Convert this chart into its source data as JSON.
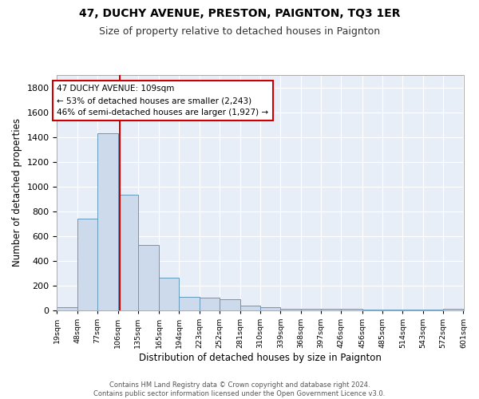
{
  "title": "47, DUCHY AVENUE, PRESTON, PAIGNTON, TQ3 1ER",
  "subtitle": "Size of property relative to detached houses in Paignton",
  "xlabel": "Distribution of detached houses by size in Paignton",
  "ylabel": "Number of detached properties",
  "bar_color": "#ccdaeb",
  "bar_edge_color": "#6699bb",
  "bg_color": "#e8eef8",
  "grid_color": "#ffffff",
  "annotation_line_color": "#cc0000",
  "annotation_box_color": "#cc0000",
  "annotation_text": "47 DUCHY AVENUE: 109sqm\n← 53% of detached houses are smaller (2,243)\n46% of semi-detached houses are larger (1,927) →",
  "property_sqm": 109,
  "bin_edges": [
    19,
    48,
    77,
    106,
    135,
    165,
    194,
    223,
    252,
    281,
    310,
    339,
    368,
    397,
    426,
    456,
    485,
    514,
    543,
    572,
    601
  ],
  "bin_labels": [
    "19sqm",
    "48sqm",
    "77sqm",
    "106sqm",
    "135sqm",
    "165sqm",
    "194sqm",
    "223sqm",
    "252sqm",
    "281sqm",
    "310sqm",
    "339sqm",
    "368sqm",
    "397sqm",
    "426sqm",
    "456sqm",
    "485sqm",
    "514sqm",
    "543sqm",
    "572sqm",
    "601sqm"
  ],
  "counts": [
    25,
    740,
    1430,
    935,
    530,
    265,
    110,
    105,
    90,
    40,
    25,
    10,
    10,
    10,
    10,
    5,
    5,
    5,
    5,
    15
  ],
  "ylim": [
    0,
    1900
  ],
  "yticks": [
    0,
    200,
    400,
    600,
    800,
    1000,
    1200,
    1400,
    1600,
    1800
  ],
  "footer_text": "Contains HM Land Registry data © Crown copyright and database right 2024.\nContains public sector information licensed under the Open Government Licence v3.0.",
  "title_fontsize": 10,
  "subtitle_fontsize": 9,
  "ylabel_fontsize": 8.5,
  "xlabel_fontsize": 8.5,
  "fig_bg_color": "#ffffff"
}
